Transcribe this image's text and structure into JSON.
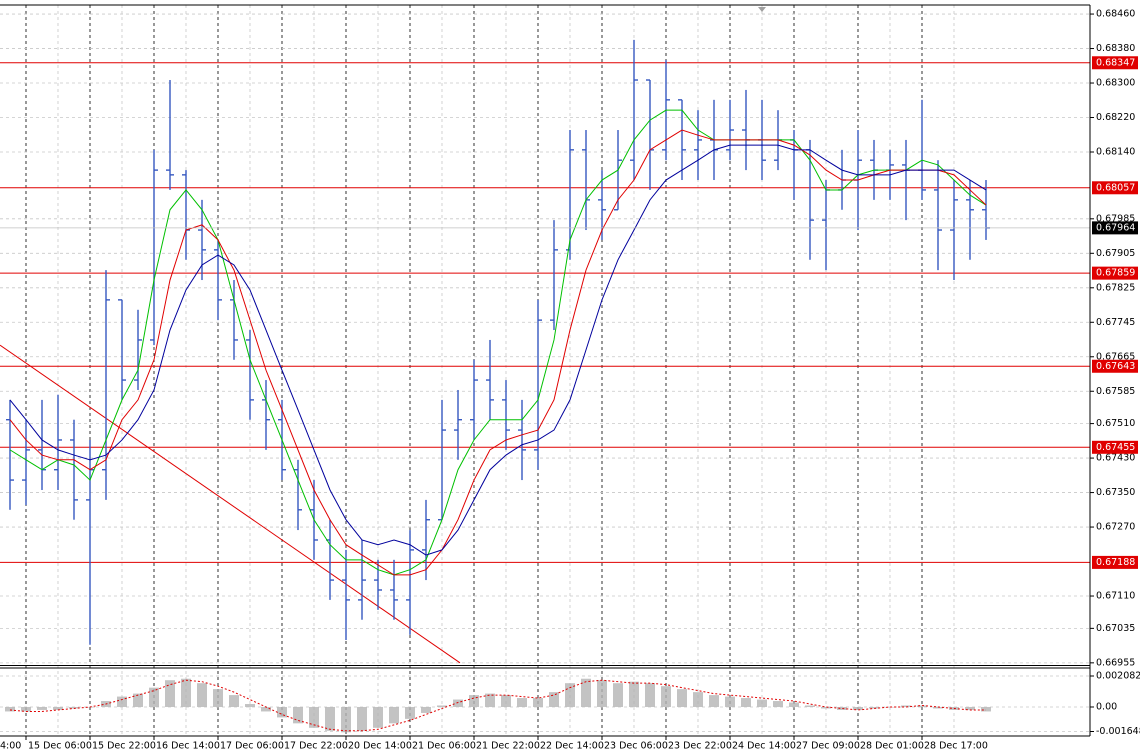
{
  "chart_data": {
    "type": "ohlc",
    "color": "#3658c0",
    "categories": [
      null,
      "15 Dec 06:00",
      null,
      null,
      null,
      "15 Dec 22:00",
      null,
      null,
      null,
      "16 Dec 14:00",
      null,
      null,
      null,
      "17 Dec 06:00",
      null,
      null,
      null,
      "17 Dec 22:00",
      null,
      null,
      null,
      "20 Dec 14:00",
      null,
      null,
      null,
      "21 Dec 06:00",
      null,
      null,
      null,
      "21 Dec 22:00",
      null,
      null,
      null,
      "22 Dec 14:00",
      null,
      null,
      null,
      "23 Dec 06:00",
      null,
      null,
      null,
      "23 Dec 22:00",
      null,
      null,
      null,
      "24 Dec 14:00",
      null,
      null,
      null,
      "27 Dec 09:00",
      null,
      null,
      null,
      "28 Dec 01:00",
      null,
      null,
      null,
      "28 Dec 17:00",
      null,
      null,
      null,
      null
    ],
    "partial_x_label": "4:00",
    "open": [
      0.67519,
      0.67379,
      0.67449,
      0.67403,
      0.67472,
      0.67333,
      0.67403,
      0.67797,
      0.67611,
      0.67704,
      0.68098,
      0.68087,
      0.67959,
      0.67913,
      0.67797,
      0.67704,
      0.67565,
      0.67519,
      0.67403,
      0.6731,
      0.6724,
      0.67147,
      0.67101,
      0.67147,
      0.67124,
      0.67101,
      0.67217,
      0.67287,
      0.67495,
      0.67519,
      0.67611,
      0.67565,
      0.67495,
      0.67449,
      0.6775,
      0.67913,
      0.68145,
      0.68029,
      0.68006,
      0.68121,
      0.68307,
      0.68145,
      0.68261,
      0.68145,
      0.68168,
      0.68145,
      0.68191,
      0.68168,
      0.68121,
      0.68168,
      0.68145,
      0.67982,
      0.68052,
      0.68075,
      0.68121,
      0.68098,
      0.6811,
      0.68098,
      0.68052,
      0.67959,
      0.68029,
      0.68006
    ],
    "high": [
      0.67565,
      0.67519,
      0.67565,
      0.67577,
      0.67519,
      0.67472,
      0.67866,
      0.67797,
      0.67774,
      0.68145,
      0.68307,
      0.68098,
      0.68029,
      0.67936,
      0.67843,
      0.67727,
      0.67611,
      0.67565,
      0.67426,
      0.67379,
      0.67287,
      0.67217,
      0.6724,
      0.67194,
      0.67194,
      0.67263,
      0.67333,
      0.67565,
      0.67588,
      0.67658,
      0.67704,
      0.67611,
      0.67565,
      0.67797,
      0.67982,
      0.68191,
      0.68191,
      0.68098,
      0.68191,
      0.684,
      0.68307,
      0.68353,
      0.68261,
      0.68237,
      0.68261,
      0.68261,
      0.68284,
      0.68261,
      0.68237,
      0.68191,
      0.68168,
      0.68075,
      0.68145,
      0.68191,
      0.68168,
      0.68145,
      0.68168,
      0.68261,
      0.68121,
      0.68075,
      0.68075,
      0.68075
    ],
    "low": [
      0.6731,
      0.67321,
      0.67356,
      0.67356,
      0.67287,
      0.66997,
      0.67333,
      0.67565,
      0.67588,
      0.67692,
      0.68052,
      0.6789,
      0.67843,
      0.6775,
      0.67658,
      0.67519,
      0.67449,
      0.67379,
      0.67263,
      0.67194,
      0.67101,
      0.67008,
      0.67055,
      0.67078,
      0.67055,
      0.6702,
      0.67147,
      0.67287,
      0.67426,
      0.67472,
      0.67519,
      0.67449,
      0.67379,
      0.67403,
      0.67727,
      0.6789,
      0.67959,
      0.67936,
      0.68006,
      0.68075,
      0.68052,
      0.68121,
      0.68075,
      0.68075,
      0.68075,
      0.68121,
      0.68098,
      0.68075,
      0.68098,
      0.68029,
      0.6789,
      0.67866,
      0.68006,
      0.67959,
      0.68029,
      0.68029,
      0.67982,
      0.68029,
      0.67866,
      0.67843,
      0.6789,
      0.67936
    ],
    "close": [
      0.67379,
      0.67449,
      0.67403,
      0.67472,
      0.67333,
      0.67403,
      0.67797,
      0.67611,
      0.67704,
      0.68098,
      0.68087,
      0.67959,
      0.67913,
      0.67797,
      0.67704,
      0.67565,
      0.67519,
      0.67403,
      0.6731,
      0.6724,
      0.67147,
      0.67101,
      0.67147,
      0.67124,
      0.67101,
      0.67217,
      0.67287,
      0.67495,
      0.67519,
      0.67611,
      0.67565,
      0.67495,
      0.67449,
      0.6775,
      0.67913,
      0.68145,
      0.68029,
      0.68006,
      0.68121,
      0.68307,
      0.68145,
      0.68261,
      0.68145,
      0.68168,
      0.68145,
      0.68191,
      0.68168,
      0.68121,
      0.68168,
      0.68145,
      0.67982,
      0.68052,
      0.68075,
      0.68121,
      0.68098,
      0.6811,
      0.68098,
      0.68052,
      0.67959,
      0.68029,
      0.68006,
      0.67964
    ],
    "moving_averages": [
      {
        "color": "#00c000",
        "values": [
          0.67449,
          0.67426,
          0.67403,
          0.67426,
          0.67414,
          0.67379,
          0.67472,
          0.67565,
          0.67634,
          0.67843,
          0.68006,
          0.68052,
          0.68006,
          0.67936,
          0.67797,
          0.67658,
          0.67565,
          0.67472,
          0.67379,
          0.67287,
          0.67229,
          0.67194,
          0.67194,
          0.67171,
          0.67159,
          0.67171,
          0.67194,
          0.67287,
          0.67403,
          0.67472,
          0.67519,
          0.67519,
          0.67519,
          0.67565,
          0.67704,
          0.67936,
          0.68029,
          0.68075,
          0.68098,
          0.68168,
          0.68214,
          0.68237,
          0.68237,
          0.68191,
          0.68168,
          0.68168,
          0.68168,
          0.68168,
          0.68168,
          0.68168,
          0.68121,
          0.68052,
          0.68052,
          0.68087,
          0.68098,
          0.68098,
          0.68098,
          0.68121,
          0.6811,
          0.68075,
          0.6804,
          0.68017
        ]
      },
      {
        "color": "#e00000",
        "values": [
          0.67519,
          0.67472,
          0.67437,
          0.67426,
          0.67426,
          0.67403,
          0.67426,
          0.67519,
          0.67565,
          0.67658,
          0.67843,
          0.67959,
          0.67971,
          0.67936,
          0.67866,
          0.6775,
          0.67634,
          0.67542,
          0.67449,
          0.67356,
          0.67287,
          0.67229,
          0.67205,
          0.67182,
          0.67159,
          0.67159,
          0.67171,
          0.67217,
          0.67287,
          0.67379,
          0.67449,
          0.67472,
          0.67484,
          0.67495,
          0.67565,
          0.67727,
          0.67866,
          0.67959,
          0.68029,
          0.68075,
          0.68145,
          0.68168,
          0.68191,
          0.68179,
          0.68168,
          0.68168,
          0.68168,
          0.68168,
          0.68168,
          0.68156,
          0.68133,
          0.68098,
          0.68075,
          0.68075,
          0.68087,
          0.68098,
          0.68098,
          0.68098,
          0.68098,
          0.68087,
          0.68052,
          0.68017
        ]
      },
      {
        "color": "#00009c",
        "values": [
          0.67565,
          0.67519,
          0.67472,
          0.67449,
          0.67437,
          0.67426,
          0.67437,
          0.67472,
          0.67519,
          0.67588,
          0.67727,
          0.6782,
          0.67878,
          0.67901,
          0.67878,
          0.6782,
          0.67727,
          0.67634,
          0.67542,
          0.67449,
          0.67356,
          0.67287,
          0.6724,
          0.67229,
          0.6724,
          0.67229,
          0.67205,
          0.67217,
          0.67263,
          0.67333,
          0.67403,
          0.67437,
          0.67461,
          0.67472,
          0.67495,
          0.67565,
          0.67681,
          0.67797,
          0.6789,
          0.67959,
          0.68029,
          0.68075,
          0.68098,
          0.68121,
          0.68145,
          0.68156,
          0.68156,
          0.68156,
          0.68156,
          0.68145,
          0.68145,
          0.68121,
          0.68098,
          0.68087,
          0.68087,
          0.68087,
          0.68098,
          0.68098,
          0.68098,
          0.68098,
          0.68075,
          0.68052
        ]
      }
    ],
    "ylim": [
      0.6695,
      0.68481
    ],
    "yticks": [
      {
        "value": 0.6846,
        "label": "0.68460"
      },
      {
        "value": 0.6838,
        "label": "0.68380"
      },
      {
        "value": 0.683,
        "label": "0.68300"
      },
      {
        "value": 0.6822,
        "label": "0.68220"
      },
      {
        "value": 0.6814,
        "label": "0.68140"
      },
      0.67985,
      0.67905,
      0.67825,
      0.67745,
      0.67665,
      0.67585,
      {
        "value": 0.6751,
        "label": "0.67510"
      },
      {
        "value": 0.6743,
        "label": "0.67430"
      },
      {
        "value": 0.6735,
        "label": "0.67350"
      },
      {
        "value": 0.6727,
        "label": "0.67270"
      },
      {
        "value": 0.6711,
        "label": "0.67110"
      },
      0.67035,
      0.66955
    ],
    "grid": true,
    "horizontal_lines": {
      "color": "#e00000",
      "levels": [
        0.68347,
        0.68057,
        0.67859,
        0.67643,
        0.67455,
        0.67188
      ]
    },
    "current_price": 0.67964,
    "trendline": {
      "color": "#e00000",
      "values": [
        0.67692,
        0.66955
      ]
    },
    "indicator": {
      "type": "histogram",
      "color": "#b4b4b4",
      "values": [
        -0.0003,
        -0.0003,
        -0.0002,
        -0.0002,
        -0.0001,
        0,
        0.0004,
        0.0007,
        0.0009,
        0.0013,
        0.0018,
        0.0019,
        0.0016,
        0.0012,
        0.0008,
        0.0002,
        -0.0003,
        -0.0007,
        -0.0011,
        -0.0014,
        -0.0016,
        -0.0017,
        -0.0016,
        -0.0014,
        -0.0011,
        -0.0008,
        -0.0004,
        0.0001,
        0.0005,
        0.0008,
        0.0009,
        0.0008,
        0.0006,
        0.0006,
        0.001,
        0.0016,
        0.0019,
        0.0018,
        0.0016,
        0.0017,
        0.0016,
        0.0014,
        0.0012,
        0.001,
        0.0008,
        0.0007,
        0.0006,
        0.0005,
        0.0004,
        0.0003,
        0.0001,
        -0.0001,
        -0.0002,
        -0.0002,
        -0.0001,
        0,
        0.0001,
        0.0001,
        -0.0001,
        -0.0002,
        -0.0002,
        -0.0003
      ],
      "signal": {
        "color": "#e00000",
        "values": [
          -0.0002,
          -0.0003,
          -0.0003,
          -0.0002,
          -0.0001,
          0,
          0.0002,
          0.0005,
          0.0008,
          0.0011,
          0.0015,
          0.0018,
          0.0017,
          0.0014,
          0.001,
          0.0005,
          0,
          -0.0005,
          -0.0009,
          -0.0012,
          -0.0015,
          -0.0016,
          -0.0016,
          -0.0015,
          -0.0012,
          -0.0009,
          -0.0005,
          -0.0001,
          0.0003,
          0.0006,
          0.0008,
          0.0008,
          0.0007,
          0.0006,
          0.0008,
          0.0013,
          0.0017,
          0.0018,
          0.0017,
          0.0016,
          0.0016,
          0.0015,
          0.0013,
          0.0011,
          0.0009,
          0.0008,
          0.0007,
          0.0006,
          0.0005,
          0.0004,
          0.0002,
          0,
          -0.0001,
          -0.0002,
          -0.0001,
          0,
          0,
          0.0001,
          0,
          -0.0001,
          -0.0002,
          -0.0002
        ]
      },
      "ylim": [
        -0.00195,
        0.00262
      ],
      "yticks": [
        0.002082,
        {
          "value": 0,
          "label": "0.00"
        },
        -0.001648
      ]
    }
  }
}
